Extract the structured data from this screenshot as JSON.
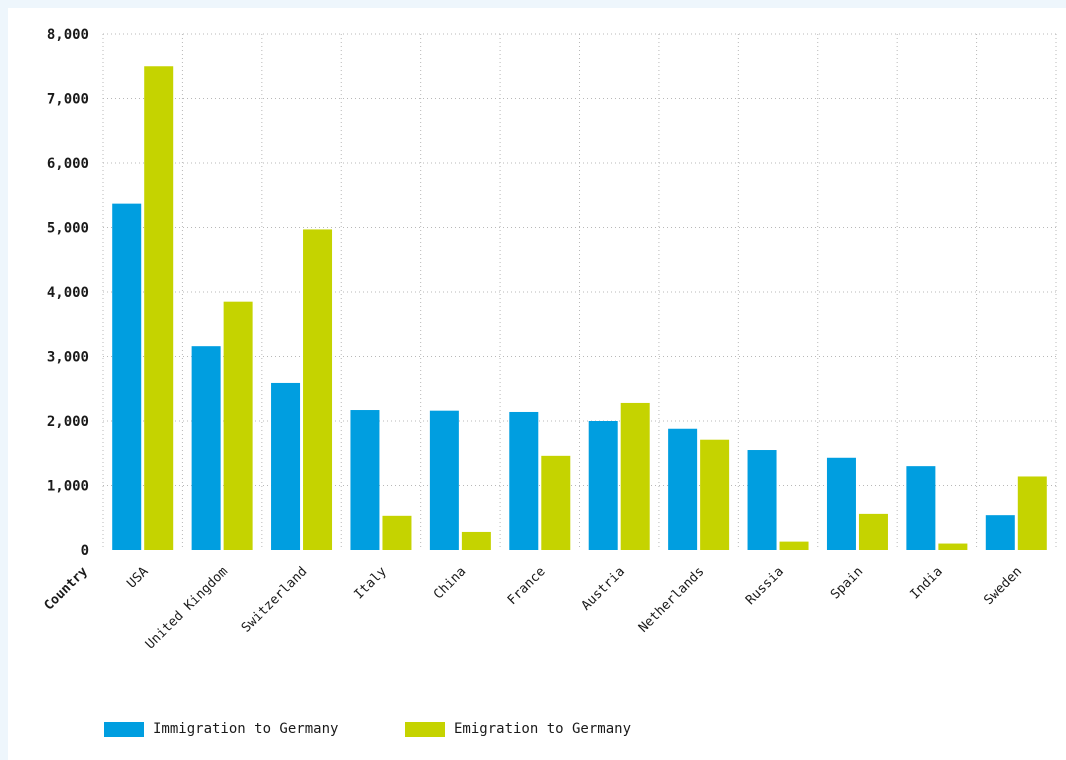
{
  "chart_data": {
    "type": "bar",
    "xlabel": "Country",
    "categories": [
      "USA",
      "United Kingdom",
      "Switzerland",
      "Italy",
      "China",
      "France",
      "Austria",
      "Netherlands",
      "Russia",
      "Spain",
      "India",
      "Sweden"
    ],
    "series": [
      {
        "name": "Immigration to Germany",
        "color": "#009ee0",
        "values": [
          5370,
          3160,
          2590,
          2170,
          2160,
          2140,
          2000,
          1880,
          1550,
          1430,
          1300,
          540
        ]
      },
      {
        "name": "Emigration to Germany",
        "color": "#c5d300",
        "values": [
          7500,
          3850,
          4970,
          530,
          280,
          1460,
          2280,
          1710,
          130,
          560,
          100,
          1140
        ]
      }
    ],
    "ylim": [
      0,
      8000
    ],
    "yticks": [
      "0",
      "1,000",
      "2,000",
      "3,000",
      "4,000",
      "5,000",
      "6,000",
      "7,000",
      "8,000"
    ],
    "ytick_values": [
      0,
      1000,
      2000,
      3000,
      4000,
      5000,
      6000,
      7000,
      8000
    ],
    "grid": true,
    "legend_position": "bottom-left"
  }
}
